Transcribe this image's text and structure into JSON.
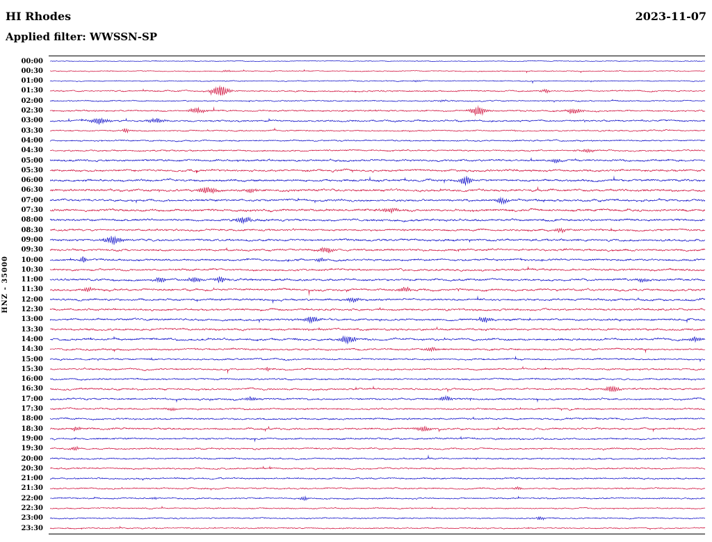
{
  "chart_data": {
    "type": "line",
    "title": "HI Rhodes",
    "date": "2023-11-07",
    "filter_label": "Applied filter: WWSSN-SP",
    "channel_scale_label": "HNZ - 35000",
    "description": "24-hour helicorder seismogram, one trace per 30 minutes, alternating blue/red traces, amplitudes in arbitrary pixel units, events listed as [x_fraction_of_row, peak_amplitude_px, width_px]",
    "row_interval_minutes": 30,
    "rows_count": 48,
    "legend": "none",
    "grid": "off",
    "colors": {
      "blue": "#0e0ec8",
      "red": "#d0103c",
      "frame": "#000000",
      "background": "#ffffff"
    },
    "rows": [
      {
        "time": "00:00",
        "color": "blue",
        "amp": 0.6,
        "events": []
      },
      {
        "time": "00:30",
        "color": "red",
        "amp": 0.7,
        "events": [
          [
            0.27,
            1.5,
            5
          ]
        ]
      },
      {
        "time": "01:00",
        "color": "blue",
        "amp": 0.7,
        "events": [
          [
            0.56,
            1.5,
            4
          ]
        ]
      },
      {
        "time": "01:30",
        "color": "red",
        "amp": 1.0,
        "events": [
          [
            0.26,
            7,
            9
          ],
          [
            0.757,
            2.5,
            5
          ]
        ]
      },
      {
        "time": "02:00",
        "color": "blue",
        "amp": 0.9,
        "events": [
          [
            0.6,
            1.5,
            4
          ]
        ]
      },
      {
        "time": "02:30",
        "color": "red",
        "amp": 1.1,
        "events": [
          [
            0.224,
            4,
            8
          ],
          [
            0.654,
            6,
            8
          ],
          [
            0.8,
            4,
            8
          ]
        ]
      },
      {
        "time": "03:00",
        "color": "blue",
        "amp": 1.2,
        "events": [
          [
            0.075,
            4,
            10
          ],
          [
            0.162,
            3.5,
            8
          ]
        ]
      },
      {
        "time": "03:30",
        "color": "red",
        "amp": 1.0,
        "events": [
          [
            0.115,
            4,
            3
          ]
        ]
      },
      {
        "time": "04:00",
        "color": "blue",
        "amp": 1.0,
        "events": []
      },
      {
        "time": "04:30",
        "color": "red",
        "amp": 1.1,
        "events": [
          [
            0.82,
            2.5,
            6
          ]
        ]
      },
      {
        "time": "05:00",
        "color": "blue",
        "amp": 1.4,
        "events": [
          [
            0.773,
            3,
            6
          ]
        ]
      },
      {
        "time": "05:30",
        "color": "red",
        "amp": 1.5,
        "events": []
      },
      {
        "time": "06:00",
        "color": "blue",
        "amp": 1.5,
        "events": [
          [
            0.635,
            6,
            6
          ]
        ]
      },
      {
        "time": "06:30",
        "color": "red",
        "amp": 1.6,
        "events": [
          [
            0.242,
            5,
            9
          ],
          [
            0.306,
            3,
            6
          ]
        ]
      },
      {
        "time": "07:00",
        "color": "blue",
        "amp": 1.5,
        "events": [
          [
            0.69,
            5,
            6
          ]
        ]
      },
      {
        "time": "07:30",
        "color": "red",
        "amp": 1.6,
        "events": [
          [
            0.52,
            3,
            8
          ]
        ]
      },
      {
        "time": "08:00",
        "color": "blue",
        "amp": 1.5,
        "events": [
          [
            0.295,
            5,
            8
          ]
        ]
      },
      {
        "time": "08:30",
        "color": "red",
        "amp": 1.4,
        "events": [
          [
            0.78,
            3,
            6
          ]
        ]
      },
      {
        "time": "09:00",
        "color": "blue",
        "amp": 1.5,
        "events": [
          [
            0.095,
            5,
            10
          ]
        ]
      },
      {
        "time": "09:30",
        "color": "red",
        "amp": 1.4,
        "events": [
          [
            0.422,
            4,
            8
          ]
        ]
      },
      {
        "time": "10:00",
        "color": "blue",
        "amp": 1.4,
        "events": [
          [
            0.051,
            5,
            3
          ],
          [
            0.412,
            3,
            5
          ]
        ]
      },
      {
        "time": "10:30",
        "color": "red",
        "amp": 1.4,
        "events": []
      },
      {
        "time": "11:00",
        "color": "blue",
        "amp": 1.5,
        "events": [
          [
            0.168,
            4,
            6
          ],
          [
            0.221,
            4,
            6
          ],
          [
            0.261,
            4,
            6
          ],
          [
            0.905,
            3,
            6
          ]
        ]
      },
      {
        "time": "11:30",
        "color": "red",
        "amp": 1.5,
        "events": [
          [
            0.059,
            3,
            5
          ],
          [
            0.542,
            3.5,
            8
          ]
        ]
      },
      {
        "time": "12:00",
        "color": "blue",
        "amp": 1.4,
        "events": [
          [
            0.463,
            4,
            6
          ]
        ]
      },
      {
        "time": "12:30",
        "color": "red",
        "amp": 1.4,
        "events": []
      },
      {
        "time": "13:00",
        "color": "blue",
        "amp": 1.4,
        "events": [
          [
            0.399,
            5,
            7
          ],
          [
            0.664,
            4,
            7
          ]
        ]
      },
      {
        "time": "13:30",
        "color": "red",
        "amp": 1.4,
        "events": []
      },
      {
        "time": "14:00",
        "color": "blue",
        "amp": 1.5,
        "events": [
          [
            0.454,
            5,
            8
          ],
          [
            0.985,
            4,
            5
          ]
        ]
      },
      {
        "time": "14:30",
        "color": "red",
        "amp": 1.3,
        "events": [
          [
            0.582,
            3,
            6
          ]
        ]
      },
      {
        "time": "15:00",
        "color": "blue",
        "amp": 1.2,
        "events": []
      },
      {
        "time": "15:30",
        "color": "red",
        "amp": 1.2,
        "events": [
          [
            0.332,
            3,
            3
          ]
        ]
      },
      {
        "time": "16:00",
        "color": "blue",
        "amp": 1.2,
        "events": []
      },
      {
        "time": "16:30",
        "color": "red",
        "amp": 1.3,
        "events": [
          [
            0.858,
            5,
            7
          ]
        ]
      },
      {
        "time": "17:00",
        "color": "blue",
        "amp": 1.3,
        "events": [
          [
            0.306,
            3,
            6
          ],
          [
            0.603,
            4,
            6
          ]
        ]
      },
      {
        "time": "17:30",
        "color": "red",
        "amp": 1.2,
        "events": [
          [
            0.184,
            2.5,
            5
          ]
        ]
      },
      {
        "time": "18:00",
        "color": "blue",
        "amp": 1.2,
        "events": []
      },
      {
        "time": "18:30",
        "color": "red",
        "amp": 1.3,
        "events": [
          [
            0.04,
            3,
            5
          ],
          [
            0.569,
            4,
            7
          ]
        ]
      },
      {
        "time": "19:00",
        "color": "blue",
        "amp": 1.2,
        "events": []
      },
      {
        "time": "19:30",
        "color": "red",
        "amp": 1.1,
        "events": [
          [
            0.038,
            3,
            4
          ]
        ]
      },
      {
        "time": "20:00",
        "color": "blue",
        "amp": 1.1,
        "events": []
      },
      {
        "time": "20:30",
        "color": "red",
        "amp": 1.1,
        "events": []
      },
      {
        "time": "21:00",
        "color": "blue",
        "amp": 1.1,
        "events": []
      },
      {
        "time": "21:30",
        "color": "red",
        "amp": 1.0,
        "events": [
          [
            0.714,
            2.5,
            4
          ]
        ]
      },
      {
        "time": "22:00",
        "color": "blue",
        "amp": 1.0,
        "events": [
          [
            0.159,
            2,
            4
          ],
          [
            0.387,
            3,
            4
          ]
        ]
      },
      {
        "time": "22:30",
        "color": "red",
        "amp": 0.9,
        "events": []
      },
      {
        "time": "23:00",
        "color": "blue",
        "amp": 0.9,
        "events": [
          [
            0.749,
            2.5,
            5
          ]
        ]
      },
      {
        "time": "23:30",
        "color": "red",
        "amp": 0.9,
        "events": []
      }
    ]
  }
}
